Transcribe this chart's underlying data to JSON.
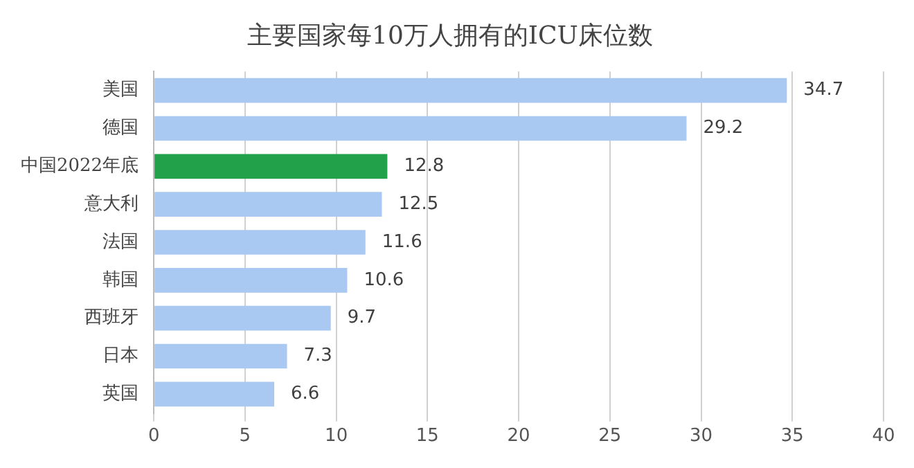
{
  "chart_data": {
    "type": "bar",
    "orientation": "horizontal",
    "title": "主要国家每10万人拥有的ICU床位数",
    "categories": [
      "美国",
      "德国",
      "中国2022年底",
      "意大利",
      "法国",
      "韩国",
      "西班牙",
      "日本",
      "英国"
    ],
    "values": [
      34.7,
      29.2,
      12.8,
      12.5,
      11.6,
      10.6,
      9.7,
      7.3,
      6.6
    ],
    "colors": [
      "#a9c8f2",
      "#a9c8f2",
      "#22a04a",
      "#a9c8f2",
      "#a9c8f2",
      "#a9c8f2",
      "#a9c8f2",
      "#a9c8f2",
      "#a9c8f2"
    ],
    "xlim": [
      0,
      40
    ],
    "xticks": [
      0,
      5,
      10,
      15,
      20,
      25,
      30,
      35,
      40
    ],
    "grid": "x",
    "legend": false,
    "data_labels": true
  }
}
